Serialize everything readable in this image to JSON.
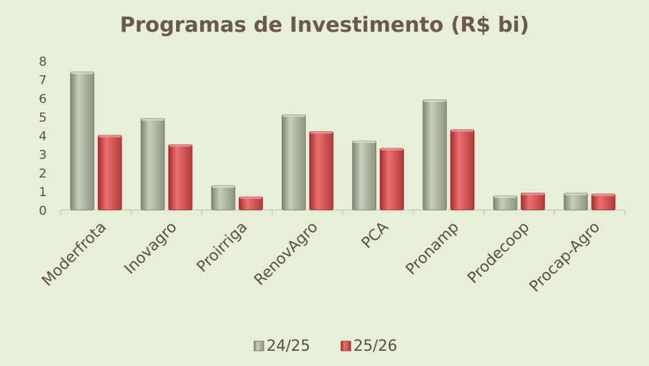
{
  "chart_data": {
    "type": "bar",
    "title": "Programas de Investimento (R$ bi)",
    "categories": [
      "Moderfrota",
      "Inovagro",
      "Proirriga",
      "RenovAgro",
      "PCA",
      "Pronamp",
      "Prodecoop",
      "Procap-Agro"
    ],
    "series": [
      {
        "name": "24/25",
        "values": [
          7.4,
          4.9,
          1.3,
          5.1,
          3.7,
          5.9,
          0.75,
          0.9
        ]
      },
      {
        "name": "25/26",
        "values": [
          4.0,
          3.5,
          0.7,
          4.2,
          3.3,
          4.3,
          0.9,
          0.85
        ]
      }
    ],
    "yticks": [
      "0",
      "1",
      "2",
      "3",
      "4",
      "5",
      "6",
      "7",
      "8"
    ],
    "ylim": [
      0,
      8
    ],
    "grid": false,
    "legend": "bottom",
    "colors": {
      "series_24_25": "#a3a994",
      "series_25_26": "#d44a4a",
      "title": "#6b5a4a",
      "axis_text": "#5c5046",
      "axis_line": "#c8cfbc",
      "background": "#e7efd9"
    }
  }
}
